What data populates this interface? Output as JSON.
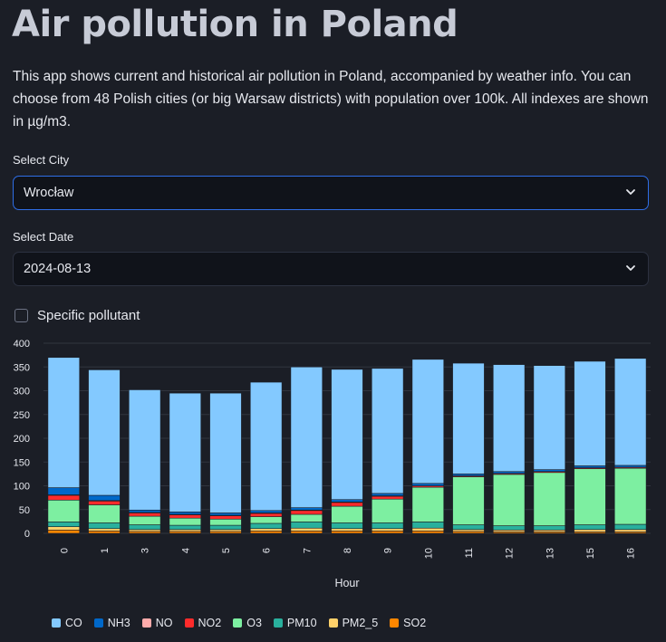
{
  "page": {
    "title": "Air pollution in Poland",
    "description": "This app shows current and historical air pollution in Poland, accompanied by weather info. You can choose from 48 Polish cities (or big Warsaw districts) with population over 100k. All indexes are shown in µg/m3."
  },
  "city_select": {
    "label": "Select City",
    "value": "Wrocław"
  },
  "date_select": {
    "label": "Select Date",
    "value": "2024-08-13"
  },
  "specific_pollutant": {
    "label": "Specific pollutant",
    "checked": false
  },
  "colors": {
    "CO": "#83c9ff",
    "NH3": "#0068c9",
    "NO": "#ffabab",
    "NO2": "#ff2b2b",
    "O3": "#7defa1",
    "PM10": "#29b09d",
    "PM2_5": "#ffd16a",
    "SO2": "#ff8700"
  },
  "chart_data": {
    "type": "bar",
    "stacked": true,
    "xlabel": "Hour",
    "ylabel": "",
    "ylim": [
      0,
      400
    ],
    "yticks": [
      0,
      50,
      100,
      150,
      200,
      250,
      300,
      350,
      400
    ],
    "grid": true,
    "legend_position": "bottom",
    "categories": [
      "0",
      "1",
      "3",
      "4",
      "5",
      "6",
      "7",
      "8",
      "9",
      "10",
      "11",
      "12",
      "13",
      "15",
      "16"
    ],
    "series": [
      {
        "name": "SO2",
        "values": [
          7,
          5,
          4,
          4,
          4,
          5,
          5,
          5,
          5,
          5,
          4,
          3,
          3,
          3,
          3
        ]
      },
      {
        "name": "PM2_5",
        "values": [
          7,
          5,
          4,
          4,
          4,
          5,
          6,
          5,
          5,
          6,
          4,
          4,
          4,
          5,
          5
        ]
      },
      {
        "name": "PM10",
        "values": [
          10,
          12,
          10,
          9,
          9,
          11,
          13,
          12,
          12,
          13,
          10,
          9,
          9,
          10,
          11
        ]
      },
      {
        "name": "O3",
        "values": [
          46,
          38,
          18,
          15,
          13,
          14,
          16,
          35,
          50,
          73,
          101,
          108,
          112,
          118,
          118
        ]
      },
      {
        "name": "NO2",
        "values": [
          10,
          8,
          7,
          7,
          7,
          7,
          8,
          8,
          6,
          3,
          2,
          2,
          2,
          2,
          2
        ]
      },
      {
        "name": "NO",
        "values": [
          1,
          1,
          1,
          1,
          1,
          1,
          1,
          1,
          1,
          0,
          0,
          0,
          0,
          0,
          0
        ]
      },
      {
        "name": "NH3",
        "values": [
          15,
          11,
          5,
          5,
          5,
          5,
          5,
          5,
          5,
          5,
          4,
          4,
          4,
          4,
          4
        ]
      },
      {
        "name": "CO",
        "values": [
          274,
          264,
          253,
          250,
          252,
          270,
          296,
          274,
          263,
          261,
          233,
          225,
          219,
          220,
          225
        ]
      }
    ]
  },
  "legend": [
    {
      "key": "CO",
      "label": "CO"
    },
    {
      "key": "NH3",
      "label": "NH3"
    },
    {
      "key": "NO",
      "label": "NO"
    },
    {
      "key": "NO2",
      "label": "NO2"
    },
    {
      "key": "O3",
      "label": "O3"
    },
    {
      "key": "PM10",
      "label": "PM10"
    },
    {
      "key": "PM2_5",
      "label": "PM2_5"
    },
    {
      "key": "SO2",
      "label": "SO2"
    }
  ]
}
